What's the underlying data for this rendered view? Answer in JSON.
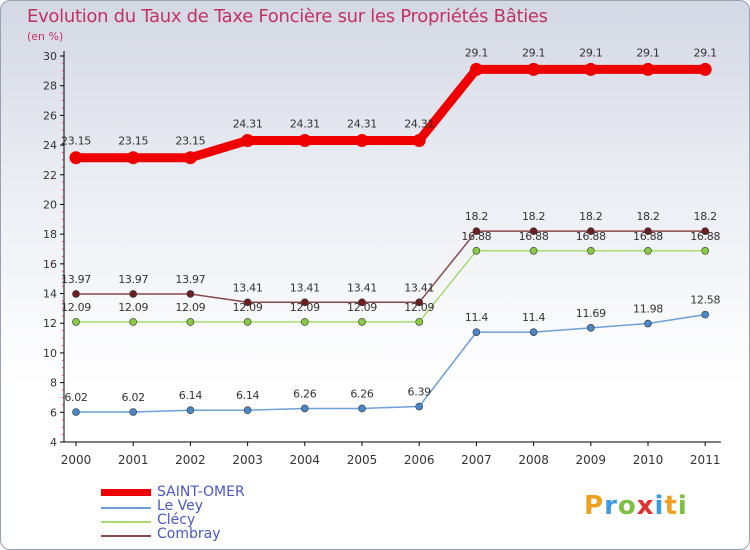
{
  "chart_data": {
    "type": "line",
    "title": "Evolution du Taux de Taxe Foncière sur les Propriétés Bâties",
    "subtitle": "(en %)",
    "x": [
      "2000",
      "2001",
      "2002",
      "2003",
      "2004",
      "2005",
      "2006",
      "2007",
      "2008",
      "2009",
      "2010",
      "2011"
    ],
    "ylim": [
      4,
      30
    ],
    "yticks": [
      "4",
      "6",
      "8",
      "10",
      "12",
      "14",
      "16",
      "18",
      "20",
      "22",
      "24",
      "26",
      "28",
      "30"
    ],
    "series": [
      {
        "name": "SAINT-OMER",
        "color": "#ee0000",
        "values": [
          23.15,
          23.15,
          23.15,
          24.31,
          24.31,
          24.31,
          24.31,
          29.1,
          29.1,
          29.1,
          29.1,
          29.1
        ],
        "labels": [
          "23.15",
          "23.15",
          "23.15",
          "24.31",
          "24.31",
          "24.31",
          "24.31",
          "29.1",
          "29.1",
          "29.1",
          "29.1",
          "29.1"
        ]
      },
      {
        "name": "Le Vey",
        "color": "#6ea0d8",
        "marker": "#4a86c8",
        "values": [
          6.02,
          6.02,
          6.14,
          6.14,
          6.26,
          6.26,
          6.39,
          11.4,
          11.4,
          11.69,
          11.98,
          12.58
        ],
        "labels": [
          "6.02",
          "6.02",
          "6.14",
          "6.14",
          "6.26",
          "6.26",
          "6.39",
          "11.4",
          "11.4",
          "11.69",
          "11.98",
          "12.58"
        ]
      },
      {
        "name": "Clécy",
        "color": "#a8dc70",
        "marker": "#88cc44",
        "values": [
          12.09,
          12.09,
          12.09,
          12.09,
          12.09,
          12.09,
          12.09,
          16.88,
          16.88,
          16.88,
          16.88,
          16.88
        ],
        "labels": [
          "12.09",
          "12.09",
          "12.09",
          "12.09",
          "12.09",
          "12.09",
          "12.09",
          "16.88",
          "16.88",
          "16.88",
          "16.88",
          "16.88"
        ]
      },
      {
        "name": "Combray",
        "color": "#8a4a4a",
        "marker": "#6e1e1e",
        "values": [
          13.97,
          13.97,
          13.97,
          13.41,
          13.41,
          13.41,
          13.41,
          18.2,
          18.2,
          18.2,
          18.2,
          18.2
        ],
        "labels": [
          "13.97",
          "13.97",
          "13.97",
          "13.41",
          "13.41",
          "13.41",
          "13.41",
          "18.2",
          "18.2",
          "18.2",
          "18.2",
          "18.2"
        ]
      }
    ]
  },
  "logo": {
    "letters": [
      "P",
      "r",
      "o",
      "x",
      "i",
      "t",
      "i"
    ],
    "colors": [
      "#f0a020",
      "#3d9be0",
      "#7cc043",
      "#e03030",
      "#3d9be0",
      "#f0a020",
      "#7cc043"
    ]
  }
}
